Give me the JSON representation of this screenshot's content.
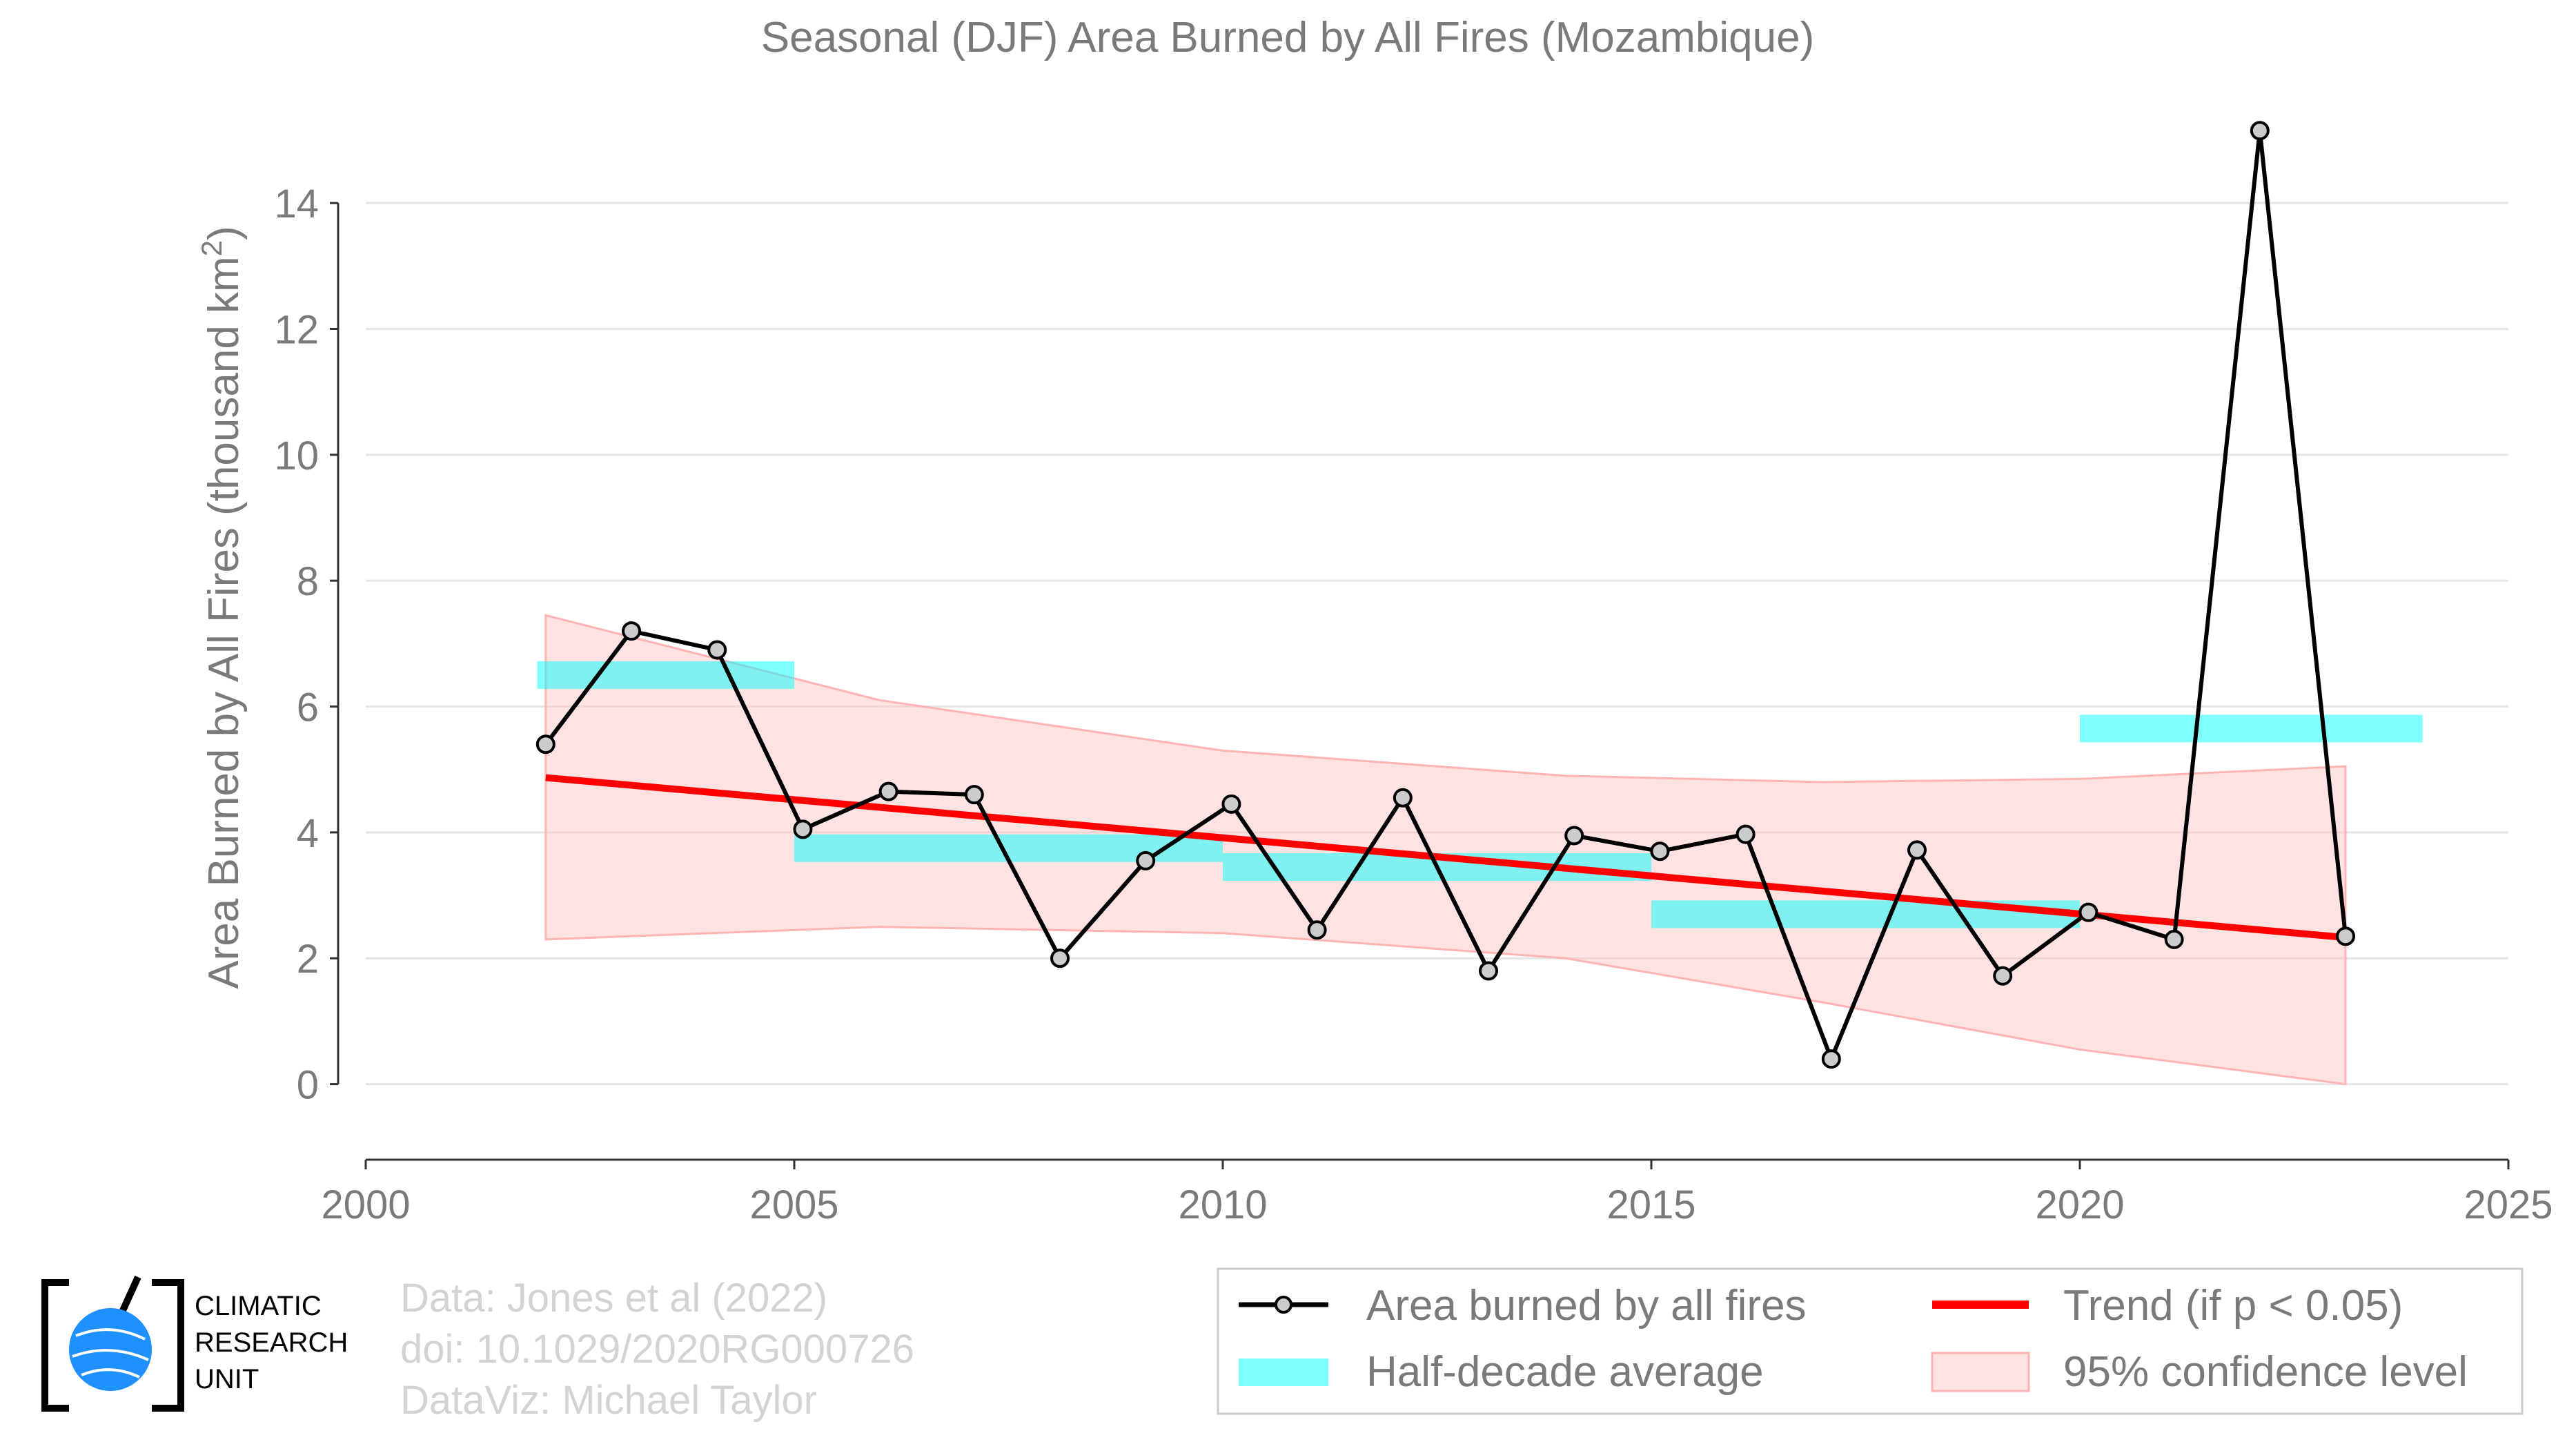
{
  "chart_data": {
    "type": "line",
    "title": "Seasonal (DJF) Area Burned by All Fires (Mozambique)",
    "ylabel": "Area Burned by All Fires (thousand km",
    "ylabel_sup": "2",
    "ylabel_end": ")",
    "xlim": [
      2000,
      2025
    ],
    "ylim": [
      -1.2,
      15.8
    ],
    "xticks": [
      2000,
      2005,
      2010,
      2015,
      2020,
      2025
    ],
    "yticks": [
      0,
      2,
      4,
      6,
      8,
      10,
      12,
      14
    ],
    "grid": "horizontal",
    "series": [
      {
        "name": "Area burned by all fires",
        "color": "#000000",
        "x": [
          2002.1,
          2003.1,
          2004.1,
          2005.1,
          2006.1,
          2007.1,
          2008.1,
          2009.1,
          2010.1,
          2011.1,
          2012.1,
          2013.1,
          2014.1,
          2015.1,
          2016.1,
          2017.1,
          2018.1,
          2019.1,
          2020.1,
          2021.1,
          2022.1,
          2023.1
        ],
        "y": [
          5.4,
          7.2,
          6.9,
          4.05,
          4.65,
          4.6,
          2.0,
          3.55,
          4.45,
          2.45,
          4.55,
          1.8,
          3.95,
          3.7,
          3.97,
          0.4,
          3.72,
          1.72,
          2.73,
          2.3,
          15.15,
          2.35
        ]
      }
    ],
    "half_decade_average": {
      "name": "Half-decade average",
      "color": "#00ffff",
      "segments": [
        {
          "x0": 2002,
          "x1": 2005,
          "y": 6.5
        },
        {
          "x0": 2005,
          "x1": 2010,
          "y": 3.75
        },
        {
          "x0": 2010,
          "x1": 2015,
          "y": 3.45
        },
        {
          "x0": 2015,
          "x1": 2020,
          "y": 2.7
        },
        {
          "x0": 2020,
          "x1": 2024,
          "y": 5.65
        }
      ]
    },
    "trend": {
      "name": "Trend (if p < 0.05)",
      "color": "#ff0000",
      "x": [
        2002.1,
        2023.1
      ],
      "y": [
        4.87,
        2.33
      ]
    },
    "confidence": {
      "name": "95% confidence level",
      "color": "#ffc0c0",
      "x": [
        2002.1,
        2006,
        2010,
        2014,
        2017,
        2020,
        2023.1
      ],
      "upper": [
        7.45,
        6.1,
        5.3,
        4.9,
        4.8,
        4.85,
        5.05
      ],
      "lower": [
        2.3,
        2.5,
        2.4,
        2.0,
        1.3,
        0.55,
        0.0
      ]
    },
    "legend_position": "bottom-right"
  },
  "footer": {
    "line1": "Data: Jones et al (2022)",
    "line2": "doi: 10.1029/2020RG000726",
    "line3": "DataViz: Michael Taylor"
  },
  "logo": {
    "line1": "CLIMATIC",
    "line2": "RESEARCH",
    "line3": "UNIT",
    "globe_color": "#1e90ff"
  }
}
